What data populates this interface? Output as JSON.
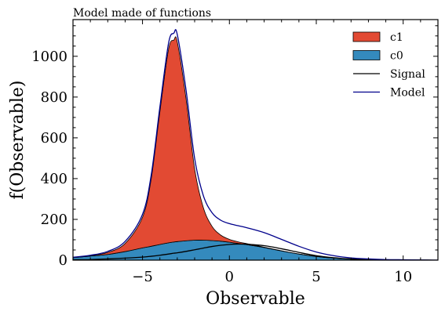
{
  "chart_data": {
    "type": "area",
    "title": "Model made of functions",
    "xlabel": "Observable",
    "ylabel": "f(Observable)",
    "xlim": [
      -9,
      12
    ],
    "ylim": [
      0,
      1180
    ],
    "xticks": [
      -5,
      0,
      5,
      10
    ],
    "xtick_labels": [
      "−5",
      "0",
      "5",
      "10"
    ],
    "yticks": [
      0,
      200,
      400,
      600,
      800,
      1000
    ],
    "ytick_labels": [
      "0",
      "200",
      "400",
      "600",
      "800",
      "1000"
    ],
    "grid": false,
    "legend_position": "top-right",
    "x": [
      -9,
      -8,
      -7,
      -6,
      -5,
      -4.5,
      -4,
      -3.5,
      -3.2,
      -3,
      -2.5,
      -2,
      -1.5,
      -1,
      -0.5,
      0,
      0.5,
      1,
      2,
      3,
      4,
      5,
      6,
      7,
      8,
      9,
      10,
      11,
      12
    ],
    "series": [
      {
        "name": "c0",
        "kind": "stacked-area",
        "color": "#348ABD",
        "values": [
          12,
          20,
          28,
          42,
          60,
          68,
          77,
          85,
          89,
          91,
          95,
          98,
          98,
          96,
          93,
          88,
          82,
          76,
          62,
          45,
          30,
          18,
          10,
          5,
          3,
          2,
          1,
          1,
          0
        ]
      },
      {
        "name": "c1",
        "kind": "stacked-area",
        "color": "#E24A33",
        "values": [
          1,
          2,
          10,
          40,
          150,
          330,
          650,
          950,
          990,
          980,
          700,
          350,
          160,
          70,
          30,
          14,
          8,
          5,
          2,
          1,
          0,
          0,
          0,
          0,
          0,
          0,
          0,
          0,
          0
        ]
      },
      {
        "name": "Signal",
        "kind": "line",
        "color": "#000000",
        "values": [
          2,
          3,
          6,
          10,
          15,
          19,
          24,
          30,
          34,
          36,
          43,
          51,
          59,
          67,
          73,
          77,
          79,
          78,
          71,
          56,
          38,
          22,
          12,
          6,
          3,
          1,
          1,
          0,
          0
        ]
      },
      {
        "name": "Model",
        "kind": "line",
        "color": "#00008B",
        "values": [
          14,
          24,
          43,
          92,
          225,
          417,
          751,
          1065,
          1113,
          1107,
          838,
          499,
          317,
          233,
          196,
          179,
          169,
          159,
          135,
          102,
          68,
          40,
          22,
          11,
          6,
          3,
          2,
          1,
          0
        ]
      }
    ]
  }
}
